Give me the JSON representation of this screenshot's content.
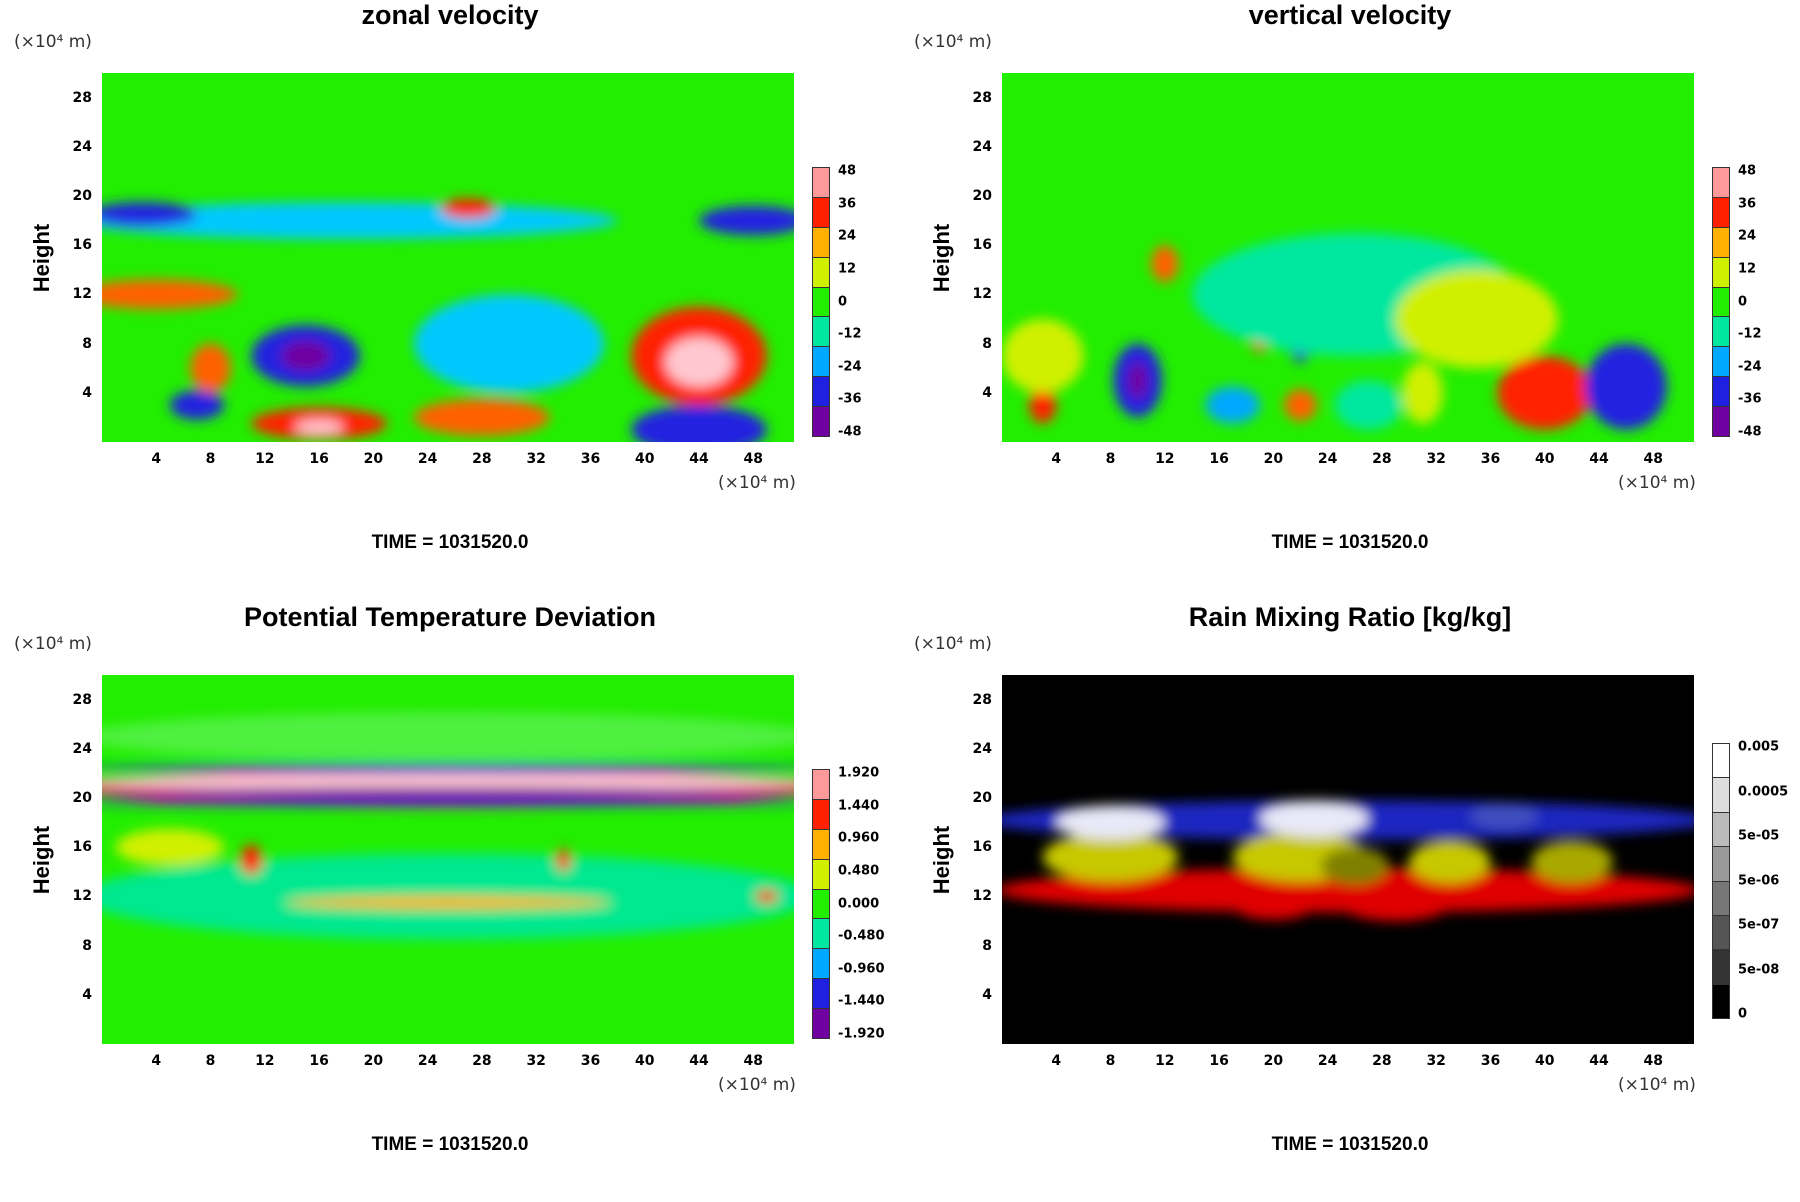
{
  "chart_data": [
    {
      "type": "heatmap",
      "title": "zonal velocity",
      "ylabel": "Height",
      "x_unit": "(×10⁴ m)",
      "y_unit": "(×10⁴ m)",
      "xticks": [
        "4",
        "8",
        "12",
        "16",
        "20",
        "24",
        "28",
        "32",
        "36",
        "40",
        "44",
        "48"
      ],
      "yticks": [
        "28",
        "24",
        "20",
        "16",
        "12",
        "8",
        "4"
      ],
      "xlim": [
        0,
        51
      ],
      "ylim": [
        0,
        30
      ],
      "colorbar": {
        "labels": [
          "48",
          "36",
          "24",
          "12",
          "0",
          "-12",
          "-24",
          "-36",
          "-48"
        ],
        "colors": [
          "#ff9999",
          "#ff2000",
          "#ffb000",
          "#d0f000",
          "#22ee00",
          "#00e8a0",
          "#00a8ff",
          "#2020e0",
          "#7000a0"
        ]
      },
      "background_color": "#22ee00",
      "features": [
        {
          "x": 44,
          "y": 7,
          "rx": 5,
          "ry": 4,
          "color": "#ff2000"
        },
        {
          "x": 44,
          "y": 6.5,
          "rx": 2.5,
          "ry": 2,
          "color": "#ffc8d0"
        },
        {
          "x": 15,
          "y": 7,
          "rx": 4,
          "ry": 2.5,
          "color": "#2020e0"
        },
        {
          "x": 15,
          "y": 7,
          "rx": 1.8,
          "ry": 1.2,
          "color": "#7000a0"
        },
        {
          "x": 30,
          "y": 8,
          "rx": 7,
          "ry": 4,
          "color": "#00c8ff"
        },
        {
          "x": 4,
          "y": 12,
          "rx": 6,
          "ry": 1.2,
          "color": "#ff6000"
        },
        {
          "x": 18,
          "y": 18,
          "rx": 20,
          "ry": 1.5,
          "color": "#00c8ff"
        },
        {
          "x": 3,
          "y": 18.5,
          "rx": 4,
          "ry": 1,
          "color": "#2020e0"
        },
        {
          "x": 48,
          "y": 18,
          "rx": 4,
          "ry": 1.2,
          "color": "#2020e0"
        },
        {
          "x": 27,
          "y": 19,
          "rx": 2,
          "ry": 0.8,
          "color": "#ff2000"
        },
        {
          "x": 7,
          "y": 3,
          "rx": 2,
          "ry": 1.2,
          "color": "#2020e0"
        },
        {
          "x": 16,
          "y": 1.5,
          "rx": 5,
          "ry": 1.3,
          "color": "#ff2000"
        },
        {
          "x": 16,
          "y": 1.2,
          "rx": 1.8,
          "ry": 0.6,
          "color": "#ffc8d0"
        },
        {
          "x": 44,
          "y": 1,
          "rx": 5,
          "ry": 2,
          "color": "#2020e0"
        },
        {
          "x": 28,
          "y": 2,
          "rx": 5,
          "ry": 1.5,
          "color": "#ff6000"
        },
        {
          "x": 8,
          "y": 6,
          "rx": 1.5,
          "ry": 2,
          "color": "#ff6000"
        }
      ],
      "time_label": "TIME = 1031520.0"
    },
    {
      "type": "heatmap",
      "title": "vertical velocity",
      "ylabel": "Height",
      "x_unit": "(×10⁴ m)",
      "y_unit": "(×10⁴ m)",
      "xticks": [
        "4",
        "8",
        "12",
        "16",
        "20",
        "24",
        "28",
        "32",
        "36",
        "40",
        "44",
        "48"
      ],
      "yticks": [
        "28",
        "24",
        "20",
        "16",
        "12",
        "8",
        "4"
      ],
      "xlim": [
        0,
        51
      ],
      "ylim": [
        0,
        30
      ],
      "colorbar": {
        "labels": [
          "48",
          "36",
          "24",
          "12",
          "0",
          "-12",
          "-24",
          "-36",
          "-48"
        ],
        "colors": [
          "#ff9999",
          "#ff2000",
          "#ffb000",
          "#d0f000",
          "#22ee00",
          "#00e8a0",
          "#00a8ff",
          "#2020e0",
          "#7000a0"
        ]
      },
      "background_color": "#22ee00",
      "features": [
        {
          "x": 40,
          "y": 4,
          "rx": 3.5,
          "ry": 3,
          "color": "#ff2000"
        },
        {
          "x": 46,
          "y": 4.5,
          "rx": 3,
          "ry": 3.5,
          "color": "#2020e0"
        },
        {
          "x": 10,
          "y": 5,
          "rx": 1.8,
          "ry": 3,
          "color": "#2020e0"
        },
        {
          "x": 10,
          "y": 5,
          "rx": 0.7,
          "ry": 1.5,
          "color": "#7000a0"
        },
        {
          "x": 22,
          "y": 8,
          "rx": 0.8,
          "ry": 1.5,
          "color": "#2020e0"
        },
        {
          "x": 19,
          "y": 8.5,
          "rx": 0.7,
          "ry": 1.2,
          "color": "#ff2000"
        },
        {
          "x": 3,
          "y": 3,
          "rx": 1,
          "ry": 1.5,
          "color": "#ff2000"
        },
        {
          "x": 3,
          "y": 7,
          "rx": 3,
          "ry": 3,
          "color": "#d0f000"
        },
        {
          "x": 22,
          "y": 3,
          "rx": 1.2,
          "ry": 1.3,
          "color": "#ff6000"
        },
        {
          "x": 27,
          "y": 3,
          "rx": 2.5,
          "ry": 2,
          "color": "#00e8a0"
        },
        {
          "x": 12,
          "y": 14.5,
          "rx": 1,
          "ry": 1.5,
          "color": "#ff6000"
        },
        {
          "x": 26,
          "y": 12,
          "rx": 12,
          "ry": 5,
          "color": "#00e8a0"
        },
        {
          "x": 31,
          "y": 4,
          "rx": 1.5,
          "ry": 2.5,
          "color": "#d0f000"
        },
        {
          "x": 35,
          "y": 10,
          "rx": 6,
          "ry": 4,
          "color": "#d0f000"
        },
        {
          "x": 17,
          "y": 3,
          "rx": 2,
          "ry": 1.5,
          "color": "#00a8ff"
        }
      ],
      "time_label": "TIME = 1031520.0"
    },
    {
      "type": "heatmap",
      "title": "Potential Temperature Deviation",
      "ylabel": "Height",
      "x_unit": "(×10⁴ m)",
      "y_unit": "(×10⁴ m)",
      "xticks": [
        "4",
        "8",
        "12",
        "16",
        "20",
        "24",
        "28",
        "32",
        "36",
        "40",
        "44",
        "48"
      ],
      "yticks": [
        "28",
        "24",
        "20",
        "16",
        "12",
        "8",
        "4"
      ],
      "xlim": [
        0,
        51
      ],
      "ylim": [
        0,
        30
      ],
      "colorbar": {
        "labels": [
          "1.920",
          "1.440",
          "0.960",
          "0.480",
          "0.000",
          "-0.480",
          "-0.960",
          "-1.440",
          "-1.920"
        ],
        "colors": [
          "#ff9999",
          "#ff2000",
          "#ffb000",
          "#d0f000",
          "#22ee00",
          "#00e8a0",
          "#00a8ff",
          "#2020e0",
          "#7000a0"
        ]
      },
      "background_color": "#22ee00",
      "features": [
        {
          "x": 25.5,
          "y": 20.8,
          "rx": 27,
          "ry": 1.6,
          "color": "#ff2000"
        },
        {
          "x": 25.5,
          "y": 21.3,
          "rx": 27,
          "ry": 0.7,
          "color": "#ffc8d0"
        },
        {
          "x": 25.5,
          "y": 20.4,
          "rx": 27,
          "ry": 0.45,
          "color": "#7000a0"
        },
        {
          "x": 25.5,
          "y": 22.4,
          "rx": 27,
          "ry": 0.35,
          "color": "#2020e0"
        },
        {
          "x": 25.5,
          "y": 19.6,
          "rx": 27,
          "ry": 0.3,
          "color": "#2020e0"
        },
        {
          "x": 25.5,
          "y": 25,
          "rx": 27,
          "ry": 2,
          "color": "#50f040"
        },
        {
          "x": 25.5,
          "y": 12,
          "rx": 27,
          "ry": 3.5,
          "color": "#00e890"
        },
        {
          "x": 11,
          "y": 15,
          "rx": 0.8,
          "ry": 1.2,
          "color": "#ff2000"
        },
        {
          "x": 34,
          "y": 15,
          "rx": 0.5,
          "ry": 0.9,
          "color": "#ff2000"
        },
        {
          "x": 25.5,
          "y": 11.5,
          "rx": 12,
          "ry": 0.5,
          "color": "#ffb000"
        },
        {
          "x": 49,
          "y": 12,
          "rx": 0.8,
          "ry": 0.5,
          "color": "#ff2000"
        },
        {
          "x": 5,
          "y": 16,
          "rx": 4,
          "ry": 1.5,
          "color": "#d0f000"
        }
      ],
      "time_label": "TIME = 1031520.0"
    },
    {
      "type": "heatmap",
      "title": "Rain Mixing Ratio [kg/kg]",
      "ylabel": "Height",
      "x_unit": "(×10⁴ m)",
      "y_unit": "(×10⁴ m)",
      "xticks": [
        "4",
        "8",
        "12",
        "16",
        "20",
        "24",
        "28",
        "32",
        "36",
        "40",
        "44",
        "48"
      ],
      "yticks": [
        "28",
        "24",
        "20",
        "16",
        "12",
        "8",
        "4"
      ],
      "xlim": [
        0,
        51
      ],
      "ylim": [
        0,
        30
      ],
      "colorbar": {
        "labels": [
          "0.005",
          "0.0005",
          "5e-05",
          "5e-06",
          "5e-07",
          "5e-08",
          "0"
        ],
        "colors": [
          "#ffffff",
          "#dddddd",
          "#bbbbbb",
          "#999999",
          "#777777",
          "#555555",
          "#333333",
          "#000000"
        ]
      },
      "background_color": "#000000",
      "features": [
        {
          "x": 25.5,
          "y": 18.2,
          "rx": 27,
          "ry": 1.6,
          "color": "#1a28c0"
        },
        {
          "x": 25.5,
          "y": 12.5,
          "rx": 26,
          "ry": 1.8,
          "color": "#e00000"
        },
        {
          "x": 29,
          "y": 11.3,
          "rx": 4,
          "ry": 1.3,
          "color": "#e00000"
        },
        {
          "x": 20,
          "y": 11.3,
          "rx": 3,
          "ry": 1.2,
          "color": "#e00000"
        },
        {
          "x": 8,
          "y": 15.2,
          "rx": 5,
          "ry": 2,
          "color": "#c8c800"
        },
        {
          "x": 22,
          "y": 15.2,
          "rx": 5,
          "ry": 2,
          "color": "#c8c800"
        },
        {
          "x": 33,
          "y": 14.8,
          "rx": 3,
          "ry": 1.7,
          "color": "#c8c800"
        },
        {
          "x": 42,
          "y": 14.8,
          "rx": 3,
          "ry": 1.7,
          "color": "#a8a800"
        },
        {
          "x": 26,
          "y": 14.5,
          "rx": 2.5,
          "ry": 1.5,
          "color": "#808000"
        },
        {
          "x": 8,
          "y": 18,
          "rx": 4,
          "ry": 1.4,
          "color": "#e8e8f8"
        },
        {
          "x": 23,
          "y": 18.3,
          "rx": 4,
          "ry": 1.5,
          "color": "#e8e8f8"
        },
        {
          "x": 37,
          "y": 18.5,
          "rx": 2.5,
          "ry": 1,
          "color": "#4050c0"
        }
      ],
      "time_label": "TIME = 1031520.0"
    }
  ]
}
